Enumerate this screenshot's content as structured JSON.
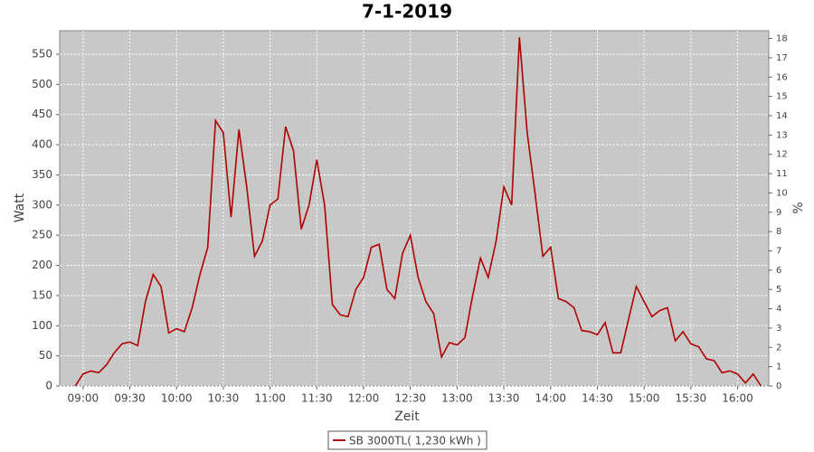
{
  "chart_data": {
    "type": "line",
    "title": "7-1-2019",
    "xlabel": "Zeit",
    "ylabel": "Watt",
    "y2label": "%",
    "x": [
      "08:55",
      "09:00",
      "09:05",
      "09:10",
      "09:15",
      "09:20",
      "09:25",
      "09:30",
      "09:35",
      "09:40",
      "09:45",
      "09:50",
      "09:55",
      "10:00",
      "10:05",
      "10:10",
      "10:15",
      "10:20",
      "10:25",
      "10:30",
      "10:35",
      "10:40",
      "10:45",
      "10:50",
      "10:55",
      "11:00",
      "11:05",
      "11:10",
      "11:15",
      "11:20",
      "11:25",
      "11:30",
      "11:35",
      "11:40",
      "11:45",
      "11:50",
      "11:55",
      "12:00",
      "12:05",
      "12:10",
      "12:15",
      "12:20",
      "12:25",
      "12:30",
      "12:35",
      "12:40",
      "12:45",
      "12:50",
      "12:55",
      "13:00",
      "13:05",
      "13:10",
      "13:15",
      "13:20",
      "13:25",
      "13:30",
      "13:35",
      "13:40",
      "13:45",
      "13:50",
      "13:55",
      "14:00",
      "14:05",
      "14:10",
      "14:15",
      "14:20",
      "14:25",
      "14:30",
      "14:35",
      "14:40",
      "14:45",
      "14:50",
      "14:55",
      "15:00",
      "15:05",
      "15:10",
      "15:15",
      "15:20",
      "15:25",
      "15:30",
      "15:35",
      "15:40",
      "15:45",
      "15:50",
      "15:55",
      "16:00",
      "16:05",
      "16:10",
      "16:15"
    ],
    "series": [
      {
        "name": "SB 3000TL( 1,230 kWh )",
        "color": "#b00000",
        "values": [
          0,
          20,
          25,
          22,
          35,
          55,
          70,
          73,
          67,
          140,
          185,
          165,
          88,
          95,
          90,
          130,
          185,
          230,
          440,
          420,
          280,
          425,
          330,
          215,
          240,
          300,
          310,
          430,
          390,
          260,
          300,
          375,
          300,
          135,
          118,
          115,
          160,
          180,
          230,
          235,
          160,
          145,
          220,
          250,
          180,
          140,
          120,
          48,
          72,
          68,
          80,
          150,
          212,
          180,
          240,
          330,
          300,
          578,
          420,
          320,
          215,
          230,
          145,
          140,
          130,
          92,
          90,
          85,
          105,
          55,
          55,
          110,
          165,
          140,
          115,
          125,
          130,
          75,
          90,
          70,
          65,
          45,
          42,
          22,
          25,
          20,
          5,
          20,
          0
        ]
      }
    ],
    "xlim": [
      "08:45",
      "16:20"
    ],
    "xticks": [
      "09:00",
      "09:30",
      "10:00",
      "10:30",
      "11:00",
      "11:30",
      "12:00",
      "12:30",
      "13:00",
      "13:30",
      "14:00",
      "14:30",
      "15:00",
      "15:30",
      "16:00"
    ],
    "ylim": [
      0,
      589
    ],
    "yticks": [
      0,
      50,
      100,
      150,
      200,
      250,
      300,
      350,
      400,
      450,
      500,
      550
    ],
    "y2lim": [
      0,
      18.4
    ],
    "y2ticks": [
      0,
      1,
      2,
      3,
      4,
      5,
      6,
      7,
      8,
      9,
      10,
      11,
      12,
      13,
      14,
      15,
      16,
      17,
      18
    ],
    "grid": true,
    "legend": "bottom"
  }
}
